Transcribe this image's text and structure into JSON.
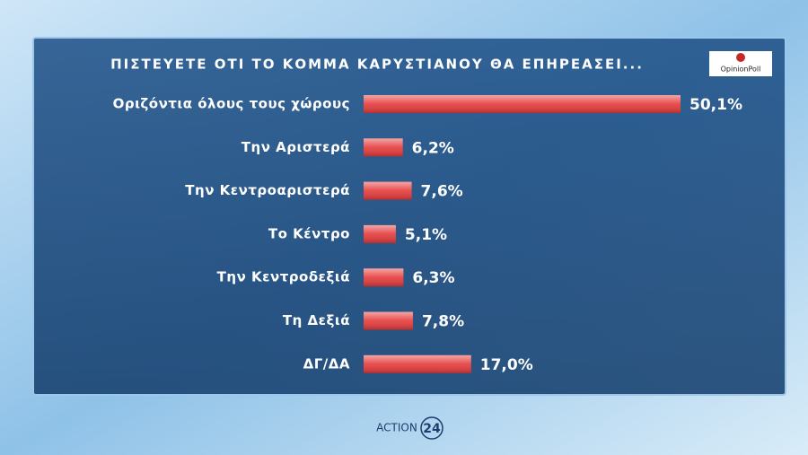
{
  "chart_data": {
    "type": "hbar",
    "title": "ΠΙΣΤΕΥΕΤΕ ΟΤΙ ΤΟ ΚΟΜΜΑ ΚΑΡΥΣΤΙΑΝΟΥ ΘΑ ΕΠΗΡΕΑΣΕΙ...",
    "categories": [
      "Οριζόντια όλους τους χώρους",
      "Την Αριστερά",
      "Την Κεντροαριστερά",
      "Το Κέντρο",
      "Την Κεντροδεξιά",
      "Τη Δεξιά",
      "ΔΓ/ΔΑ"
    ],
    "values": [
      50.1,
      6.2,
      7.6,
      5.1,
      6.3,
      7.8,
      17.0
    ],
    "value_labels": [
      "50,1%",
      "6,2%",
      "7,6%",
      "5,1%",
      "6,3%",
      "7,8%",
      "17,0%"
    ],
    "color": "#e53a3a"
  },
  "branding": {
    "source": "OpinionPoll",
    "channel": "ACTION",
    "channel_number": "24"
  }
}
